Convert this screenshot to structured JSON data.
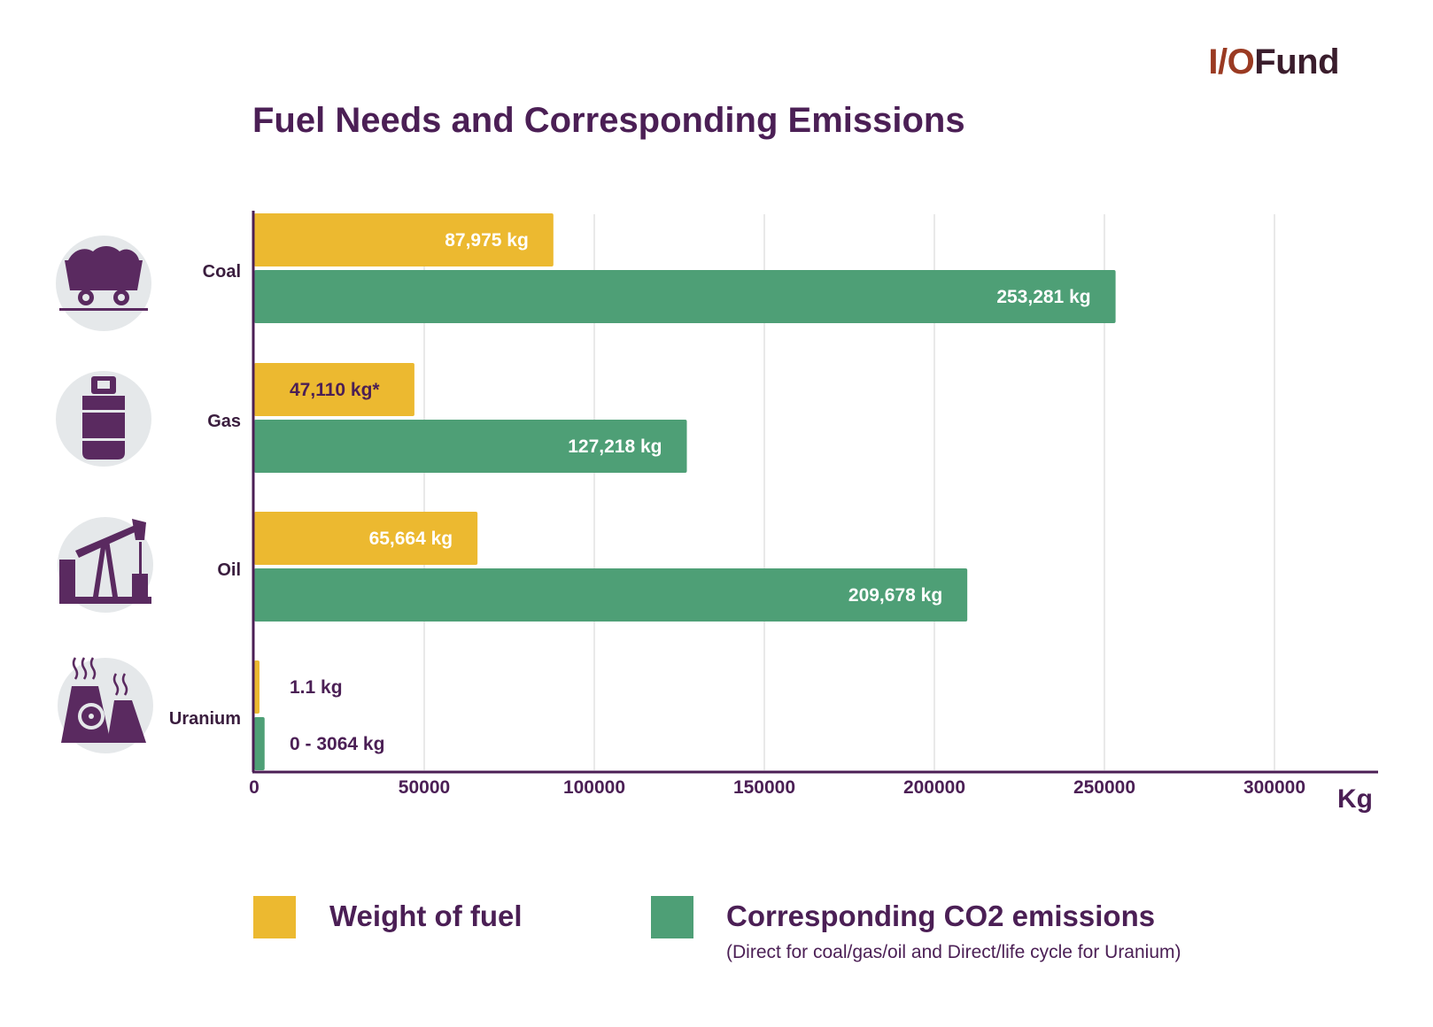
{
  "logo": {
    "part1": "I/O",
    "part2": "Fund"
  },
  "colors": {
    "fuel": "#ecb930",
    "co2": "#4e9f76",
    "axis": "#4b1f55",
    "grid": "#e2e2e2",
    "label_dark": "#4b1f55"
  },
  "chart_data": {
    "type": "bar",
    "orientation": "horizontal",
    "title": "Fuel Needs and Corresponding Emissions",
    "xlabel": "Kg",
    "ylabel": "",
    "xlim": [
      0,
      330000
    ],
    "xticks": [
      0,
      50000,
      100000,
      150000,
      200000,
      250000,
      300000
    ],
    "grid": true,
    "legend_position": "bottom",
    "categories": [
      "Coal",
      "Gas",
      "Oil",
      "Uranium"
    ],
    "category_icons": [
      "coal-cart-icon",
      "gas-cylinder-icon",
      "oil-pump-icon",
      "nuclear-plant-icon"
    ],
    "series": [
      {
        "name": "Weight of fuel",
        "color": "#ecb930",
        "values": [
          87975,
          47110,
          65664,
          1.1
        ],
        "labels": [
          "87,975 kg",
          "47,110 kg*",
          "65,664 kg",
          "1.1 kg"
        ]
      },
      {
        "name": "Corresponding CO2 emissions",
        "color": "#4e9f76",
        "values": [
          253281,
          127218,
          209678,
          3064
        ],
        "labels": [
          "253,281 kg",
          "127,218 kg",
          "209,678 kg",
          "0 - 3064 kg"
        ]
      }
    ],
    "legend_note": "(Direct for coal/gas/oil and Direct/life cycle for Uranium)"
  }
}
